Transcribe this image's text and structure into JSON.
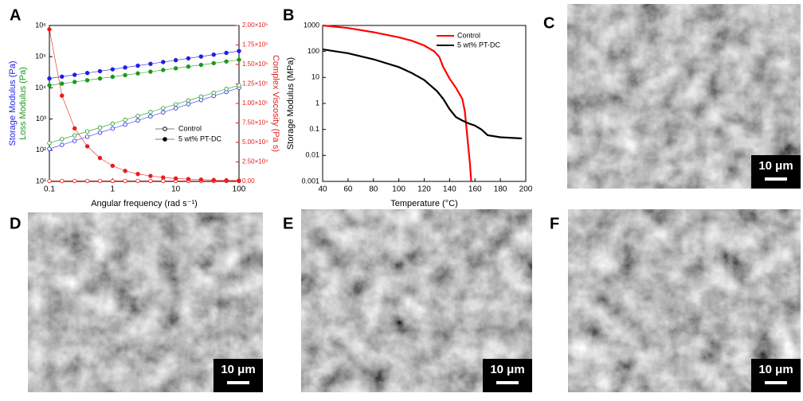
{
  "chart_data": [
    {
      "type": "scatter",
      "panel": "A",
      "x": [
        0.1,
        0.158,
        0.251,
        0.398,
        0.631,
        1,
        1.58,
        2.51,
        3.98,
        6.31,
        10,
        15.8,
        25.1,
        39.8,
        63.1,
        100
      ],
      "xlabel": "Angular frequency (rad s⁻¹)",
      "storage_label": "Storage Modulus (Pa)",
      "loss_label": "Loss Modulus (Pa)",
      "y2label": "Complex Viscosity (Pa s)",
      "storage_color": "#1f1fe6",
      "loss_color": "#1a9a1a",
      "viscosity_color": "#e81c1c",
      "xscale": "log",
      "yscale": "log",
      "xlim": [
        0.1,
        100
      ],
      "xticks": [
        0.1,
        1,
        10,
        100
      ],
      "ylim": [
        10,
        1000000
      ],
      "yticks": [
        {
          "value": 10,
          "label": "10¹"
        },
        {
          "value": 100,
          "label": "10²"
        },
        {
          "value": 1000,
          "label": "10³"
        },
        {
          "value": 10000,
          "label": "10⁴"
        },
        {
          "value": 100000,
          "label": "10⁵"
        },
        {
          "value": 1000000,
          "label": "10⁶"
        }
      ],
      "y2lim": [
        0,
        200000
      ],
      "y2ticks": [
        {
          "value": 0,
          "label": "0.00"
        },
        {
          "value": 25000,
          "label": "2.50×10⁴"
        },
        {
          "value": 50000,
          "label": "5.00×10⁴"
        },
        {
          "value": 75000,
          "label": "7.50×10⁴"
        },
        {
          "value": 100000,
          "label": "1.00×10⁵"
        },
        {
          "value": 125000,
          "label": "1.25×10⁵"
        },
        {
          "value": 150000,
          "label": "1.50×10⁵"
        },
        {
          "value": 175000,
          "label": "1.75×10⁵"
        },
        {
          "value": 200000,
          "label": "2.00×10⁵"
        }
      ],
      "legend": "center right",
      "series": [
        {
          "name": "Control",
          "filled": false,
          "storage": [
            110,
            148,
            200,
            270,
            365,
            494,
            667,
            902,
            1219,
            1645,
            2223,
            3006,
            4055,
            5483,
            7413,
            10000
          ],
          "loss": [
            170,
            226,
            301,
            400,
            532,
            708,
            942,
            1250,
            1670,
            2220,
            2950,
            3920,
            5220,
            6940,
            9240,
            12000
          ],
          "viscosity": [
            600,
            600,
            600,
            600,
            600,
            600,
            600,
            600,
            600,
            600,
            600,
            600,
            600,
            600,
            600,
            600
          ]
        },
        {
          "name": "5 wt% PT-DC",
          "filled": true,
          "storage": [
            20000,
            22900,
            26100,
            29900,
            34300,
            39200,
            44900,
            51400,
            58800,
            67300,
            77100,
            88100,
            101000,
            116000,
            132000,
            151000
          ],
          "loss": [
            12020,
            13650,
            15450,
            17540,
            19900,
            22540,
            25590,
            29040,
            32890,
            37330,
            42360,
            47970,
            54450,
            61800,
            69980,
            79430
          ],
          "viscosity": [
            195000,
            110000,
            68000,
            45000,
            30000,
            20000,
            13500,
            9500,
            7000,
            5000,
            3800,
            3000,
            2300,
            1800,
            1400,
            1100
          ]
        }
      ]
    },
    {
      "type": "line",
      "panel": "B",
      "xlabel": "Temperature (°C)",
      "ylabel": "Storage Modulus (MPa)",
      "yscale": "log",
      "xlim": [
        40,
        200
      ],
      "xticks": [
        40,
        60,
        80,
        100,
        120,
        140,
        160,
        180,
        200
      ],
      "ylim": [
        0.001,
        1000
      ],
      "yticks": [
        0.001,
        0.01,
        0.1,
        1,
        10,
        100,
        1000
      ],
      "legend": "upper right",
      "series": [
        {
          "name": "Control",
          "color": "#ff0000",
          "x": [
            40,
            60,
            80,
            100,
            110,
            120,
            128,
            132,
            135,
            140,
            145,
            150,
            152,
            154,
            156,
            157
          ],
          "values": [
            1000,
            800,
            550,
            350,
            260,
            170,
            100,
            60,
            25,
            9,
            4,
            1.5,
            0.5,
            0.05,
            0.005,
            0.001
          ]
        },
        {
          "name": "5 wt% PT-DC",
          "color": "#000000",
          "x": [
            40,
            60,
            80,
            100,
            110,
            120,
            130,
            135,
            140,
            145,
            150,
            155,
            160,
            165,
            170,
            180,
            197
          ],
          "values": [
            120,
            85,
            50,
            25,
            15,
            8,
            3,
            1.5,
            0.6,
            0.3,
            0.22,
            0.17,
            0.14,
            0.1,
            0.06,
            0.05,
            0.045
          ]
        }
      ]
    }
  ],
  "images": [
    {
      "label": "C",
      "scale_bar": "10 μm"
    },
    {
      "label": "D",
      "scale_bar": "10 μm"
    },
    {
      "label": "E",
      "scale_bar": "10 μm"
    },
    {
      "label": "F",
      "scale_bar": "10 μm"
    }
  ]
}
